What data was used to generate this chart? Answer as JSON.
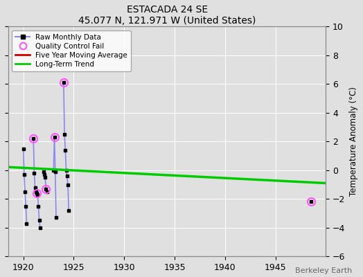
{
  "title": "ESTACADA 24 SE",
  "subtitle": "45.077 N, 121.971 W (United States)",
  "ylabel": "Temperature Anomaly (°C)",
  "watermark": "Berkeley Earth",
  "xlim": [
    1918.5,
    1950
  ],
  "ylim": [
    -6,
    10
  ],
  "xticks": [
    1920,
    1925,
    1930,
    1935,
    1940,
    1945
  ],
  "yticks": [
    -6,
    -4,
    -2,
    0,
    2,
    4,
    6,
    8,
    10
  ],
  "bg_color": "#e0e0e0",
  "segments": [
    [
      [
        1920.0,
        1.5
      ],
      [
        1920.083,
        -0.3
      ]
    ],
    [
      [
        1920.083,
        -0.3
      ],
      [
        1920.167,
        -1.5
      ]
    ],
    [
      [
        1920.167,
        -1.5
      ],
      [
        1920.25,
        -2.5
      ]
    ],
    [
      [
        1920.25,
        -2.5
      ],
      [
        1920.33,
        -3.7
      ]
    ],
    [
      [
        1921.0,
        2.2
      ],
      [
        1921.083,
        -0.2
      ]
    ],
    [
      [
        1921.083,
        -0.2
      ],
      [
        1921.167,
        -1.2
      ]
    ],
    [
      [
        1921.167,
        -1.2
      ],
      [
        1921.25,
        -1.5
      ]
    ],
    [
      [
        1921.25,
        -1.5
      ],
      [
        1921.33,
        -1.6
      ]
    ],
    [
      [
        1921.33,
        -1.6
      ],
      [
        1921.42,
        -1.7
      ]
    ],
    [
      [
        1921.42,
        -1.7
      ],
      [
        1921.5,
        -2.5
      ]
    ],
    [
      [
        1921.5,
        -2.5
      ],
      [
        1921.58,
        -3.5
      ]
    ],
    [
      [
        1921.58,
        -3.5
      ],
      [
        1921.67,
        -4.0
      ]
    ],
    [
      [
        1922.0,
        -0.1
      ],
      [
        1922.083,
        -0.3
      ]
    ],
    [
      [
        1922.083,
        -0.3
      ],
      [
        1922.167,
        -0.5
      ]
    ],
    [
      [
        1922.167,
        -0.5
      ],
      [
        1922.25,
        -1.3
      ]
    ],
    [
      [
        1922.25,
        -1.3
      ],
      [
        1922.33,
        -1.5
      ]
    ],
    [
      [
        1923.0,
        0.0
      ],
      [
        1923.083,
        2.3
      ]
    ],
    [
      [
        1923.083,
        2.3
      ],
      [
        1923.167,
        -0.1
      ]
    ],
    [
      [
        1923.167,
        -0.1
      ],
      [
        1923.25,
        -3.3
      ]
    ],
    [
      [
        1924.0,
        6.1
      ],
      [
        1924.083,
        2.5
      ]
    ],
    [
      [
        1924.083,
        2.5
      ],
      [
        1924.167,
        1.4
      ]
    ],
    [
      [
        1924.167,
        1.4
      ],
      [
        1924.25,
        0.0
      ]
    ],
    [
      [
        1924.25,
        0.0
      ],
      [
        1924.33,
        -0.4
      ]
    ],
    [
      [
        1924.33,
        -0.4
      ],
      [
        1924.42,
        -1.0
      ]
    ],
    [
      [
        1924.42,
        -1.0
      ],
      [
        1924.5,
        -2.8
      ]
    ]
  ],
  "isolated_points": [
    [
      1920.0,
      1.5
    ],
    [
      1920.083,
      -0.3
    ],
    [
      1920.167,
      -1.5
    ],
    [
      1920.25,
      -2.5
    ],
    [
      1920.33,
      -3.7
    ],
    [
      1921.0,
      2.2
    ],
    [
      1921.083,
      -0.2
    ],
    [
      1921.167,
      -1.2
    ],
    [
      1921.25,
      -1.5
    ],
    [
      1921.33,
      -1.6
    ],
    [
      1921.42,
      -1.7
    ],
    [
      1921.5,
      -2.5
    ],
    [
      1921.58,
      -3.5
    ],
    [
      1921.67,
      -4.0
    ],
    [
      1922.0,
      -0.1
    ],
    [
      1922.083,
      -0.3
    ],
    [
      1922.167,
      -0.5
    ],
    [
      1922.25,
      -1.3
    ],
    [
      1922.33,
      -1.5
    ],
    [
      1923.0,
      0.0
    ],
    [
      1923.083,
      2.3
    ],
    [
      1923.167,
      -0.1
    ],
    [
      1923.25,
      -3.3
    ],
    [
      1924.0,
      6.1
    ],
    [
      1924.083,
      2.5
    ],
    [
      1924.167,
      1.4
    ],
    [
      1924.25,
      0.0
    ],
    [
      1924.33,
      -0.4
    ],
    [
      1924.42,
      -1.0
    ],
    [
      1924.5,
      -2.8
    ],
    [
      1948.5,
      -2.2
    ]
  ],
  "qc_fail_points": [
    [
      1921.0,
      2.2
    ],
    [
      1921.33,
      -1.6
    ],
    [
      1922.25,
      -1.3
    ],
    [
      1923.083,
      2.3
    ],
    [
      1924.0,
      6.1
    ],
    [
      1948.5,
      -2.2
    ]
  ],
  "trend_x": [
    1918.5,
    1950.0
  ],
  "trend_y": [
    0.22,
    -0.9
  ],
  "raw_line_color": "#8888ee",
  "marker_color": "#000000",
  "qc_color": "#ff55ff",
  "moving_avg_color": "#cc0000",
  "trend_color": "#00cc00",
  "legend_bg": "#ffffff"
}
